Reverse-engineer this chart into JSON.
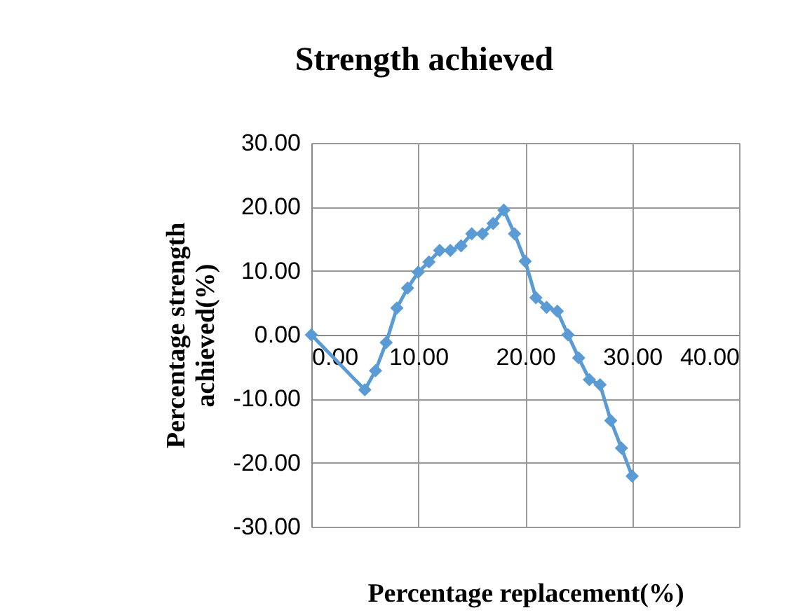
{
  "chart_data": {
    "type": "line",
    "title": "Strength achieved",
    "xlabel": "Percentage replacement(%)",
    "ylabel": "Percentage strength achieved(%)",
    "x": [
      0,
      5,
      6,
      7,
      8,
      9,
      10,
      11,
      12,
      13,
      14,
      15,
      16,
      17,
      18,
      19,
      20,
      21,
      22,
      23,
      24,
      25,
      26,
      27,
      28,
      29,
      30
    ],
    "series": [
      {
        "color": "#5b9bd5",
        "values": [
          0,
          -8.6,
          -5.6,
          -1.2,
          4.2,
          7.3,
          9.8,
          11.4,
          13.2,
          13.2,
          13.9,
          15.8,
          15.8,
          17.4,
          19.5,
          15.8,
          11.5,
          5.8,
          4.3,
          3.7,
          0,
          -3.6,
          -7.0,
          -7.8,
          -13.4,
          -17.7,
          -22.1
        ]
      }
    ],
    "xlim": [
      0,
      40
    ],
    "ylim": [
      -30,
      30
    ],
    "xticks": [
      {
        "value": 0,
        "label": "0.00"
      },
      {
        "value": 10,
        "label": "10.00"
      },
      {
        "value": 20,
        "label": "20.00"
      },
      {
        "value": 30,
        "label": "30.00"
      },
      {
        "value": 40,
        "label": "40.00"
      }
    ],
    "yticks": [
      {
        "value": -30,
        "label": "-30.00"
      },
      {
        "value": -20,
        "label": "-20.00"
      },
      {
        "value": -10,
        "label": "-10.00"
      },
      {
        "value": 0,
        "label": "0.00"
      },
      {
        "value": 10,
        "label": "10.00"
      },
      {
        "value": 20,
        "label": "20.00"
      },
      {
        "value": 30,
        "label": "30.00"
      }
    ],
    "grid": true,
    "marker": "diamond",
    "line_style": "solid"
  }
}
